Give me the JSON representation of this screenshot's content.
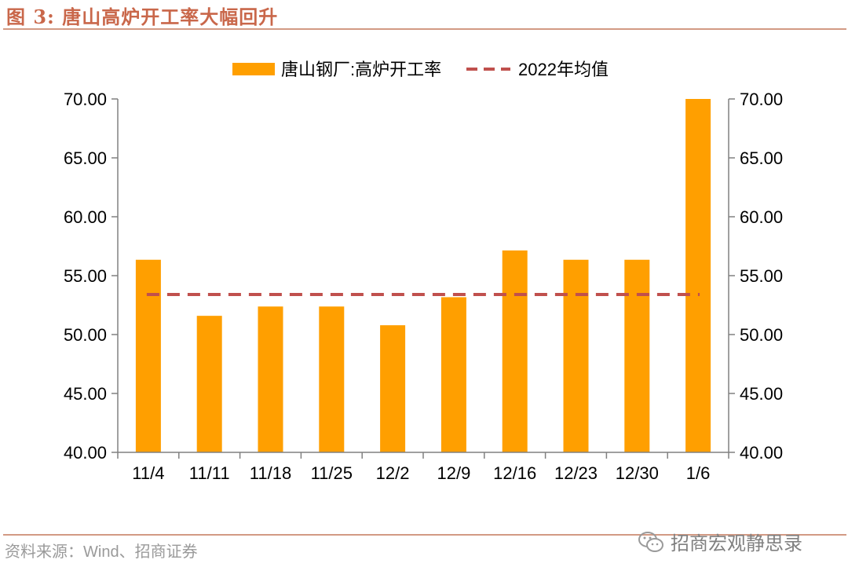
{
  "figure": {
    "title": "图 3:  唐山高炉开工率大幅回升",
    "source": "资料来源：Wind、招商证券",
    "watermark": "招商宏观静思录"
  },
  "colors": {
    "bar": "#ff9f00",
    "avg_line": "#c0504d",
    "title": "#c9674a",
    "rule": "#d29a84",
    "axis": "#808080"
  },
  "chart_data": {
    "type": "bar",
    "title": "",
    "xlabel": "",
    "ylabel": "",
    "categories": [
      "11/4",
      "11/11",
      "11/18",
      "11/25",
      "12/2",
      "12/9",
      "12/16",
      "12/23",
      "12/30",
      "1/6"
    ],
    "series": [
      {
        "name": "唐山钢厂:高炉开工率",
        "type": "bar",
        "values": [
          56.35,
          51.59,
          52.38,
          52.38,
          50.79,
          53.17,
          57.14,
          56.35,
          56.35,
          70.0
        ]
      },
      {
        "name": "2022年均值",
        "type": "line",
        "style": "dashed",
        "values": [
          53.4,
          53.4,
          53.4,
          53.4,
          53.4,
          53.4,
          53.4,
          53.4,
          53.4,
          53.4
        ]
      }
    ],
    "ylim": [
      40,
      70
    ],
    "yticks": [
      "40.00",
      "45.00",
      "50.00",
      "55.00",
      "60.00",
      "65.00",
      "70.00"
    ],
    "ytick_values": [
      40,
      45,
      50,
      55,
      60,
      65,
      70
    ],
    "secondary_ylim": [
      40,
      70
    ],
    "grid": false,
    "legend_position": "top-center"
  }
}
